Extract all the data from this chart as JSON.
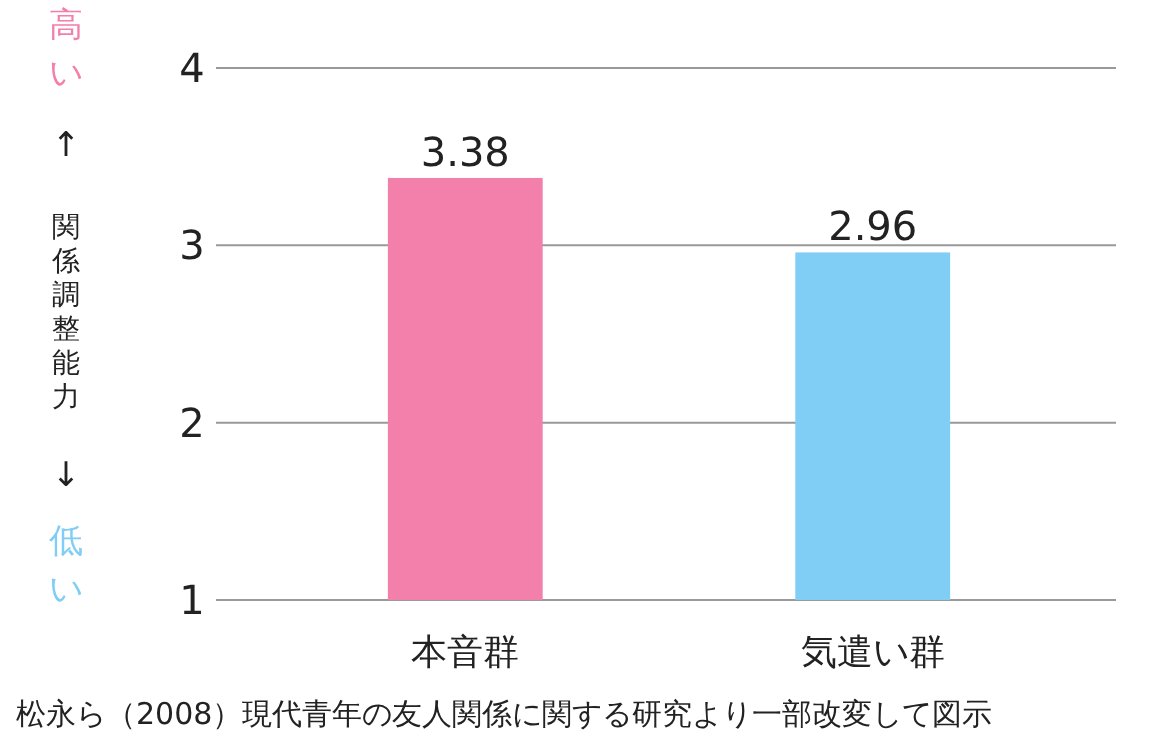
{
  "chart_data": {
    "type": "bar",
    "ylabel": "関係調整能力",
    "categories": [
      "本音群",
      "気遣い群"
    ],
    "values": [
      3.38,
      2.96
    ],
    "colors": [
      "#f380ab",
      "#80cdf5"
    ],
    "ylim": [
      1,
      4
    ],
    "yticks": [
      1,
      2,
      3,
      4
    ],
    "grid": "y",
    "data_labels": true,
    "annotations": [
      "高い",
      "↑",
      "↓",
      "低い",
      "松永ら（2008）現代青年の友人関係に関する研究より一部改変して図示"
    ]
  }
}
